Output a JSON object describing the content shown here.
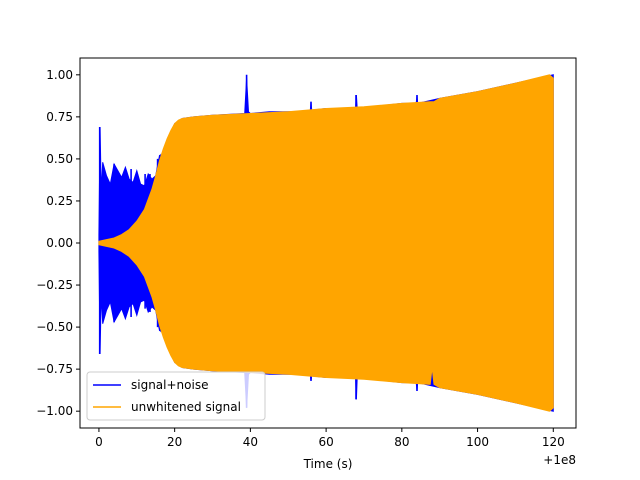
{
  "chart_data": {
    "type": "line",
    "title": "",
    "xlabel": "Time (s)",
    "ylabel": "",
    "x_offset_label": "+1e8",
    "xlim": [
      -5,
      126
    ],
    "ylim": [
      -1.1,
      1.1
    ],
    "xticks": [
      0,
      20,
      40,
      60,
      80,
      100,
      120
    ],
    "xtick_labels": [
      "0",
      "20",
      "40",
      "60",
      "80",
      "100",
      "120"
    ],
    "yticks": [
      -1.0,
      -0.75,
      -0.5,
      -0.25,
      0.0,
      0.25,
      0.5,
      0.75,
      1.0
    ],
    "ytick_labels": [
      "−1.00",
      "−0.75",
      "−0.50",
      "−0.25",
      "0.00",
      "0.25",
      "0.50",
      "0.75",
      "1.00"
    ],
    "grid": false,
    "legend_position": "lower-left",
    "series": [
      {
        "name": "signal+noise",
        "color": "#0000ff",
        "envelope_x": [
          0,
          0.3,
          0.6,
          1,
          2,
          3,
          4,
          5,
          6,
          7,
          8,
          9,
          10,
          11,
          12,
          13,
          14,
          15,
          16,
          17,
          18,
          19,
          20,
          22,
          25,
          30,
          38.5,
          39,
          39.5,
          40,
          45,
          55.8,
          56,
          56.2,
          60,
          67.8,
          68,
          68.2,
          72,
          80,
          83.8,
          84,
          84.2,
          90,
          100,
          110,
          120
        ],
        "envelope_upper": [
          0.05,
          0.69,
          0.3,
          0.48,
          0.4,
          0.35,
          0.47,
          0.43,
          0.39,
          0.45,
          0.38,
          0.36,
          0.43,
          0.35,
          0.34,
          0.41,
          0.38,
          0.4,
          0.52,
          0.53,
          0.59,
          0.66,
          0.71,
          0.74,
          0.75,
          0.76,
          0.77,
          0.98,
          0.78,
          0.77,
          0.78,
          0.78,
          0.84,
          0.79,
          0.8,
          0.8,
          0.88,
          0.8,
          0.81,
          0.83,
          0.83,
          0.88,
          0.83,
          0.86,
          0.9,
          0.95,
          1.0
        ],
        "envelope_lower": [
          -0.05,
          -0.66,
          -0.3,
          -0.48,
          -0.4,
          -0.35,
          -0.47,
          -0.43,
          -0.39,
          -0.45,
          -0.38,
          -0.36,
          -0.43,
          -0.35,
          -0.34,
          -0.41,
          -0.38,
          -0.4,
          -0.52,
          -0.53,
          -0.59,
          -0.66,
          -0.71,
          -0.74,
          -0.75,
          -0.76,
          -0.77,
          -0.98,
          -0.78,
          -0.77,
          -0.78,
          -0.78,
          -0.82,
          -0.79,
          -0.8,
          -0.8,
          -0.93,
          -0.8,
          -0.81,
          -0.83,
          -0.83,
          -0.88,
          -0.83,
          -0.86,
          -0.9,
          -0.95,
          -1.0
        ],
        "spikes": [
          {
            "x": 0.2,
            "upper": 0.69,
            "lower": -0.66
          },
          {
            "x": 4.0,
            "upper": 0.47,
            "lower": -0.47
          },
          {
            "x": 8.5,
            "upper": 0.44,
            "lower": -0.44
          },
          {
            "x": 12.2,
            "upper": 0.41,
            "lower": -0.39
          },
          {
            "x": 13.5,
            "upper": 0.41,
            "lower": -0.41
          },
          {
            "x": 15.5,
            "upper": 0.5,
            "lower": -0.5
          },
          {
            "x": 16.5,
            "upper": 0.53,
            "lower": -0.53
          },
          {
            "x": 39.0,
            "upper": 1.0,
            "lower": -0.98
          },
          {
            "x": 56.0,
            "upper": 0.84,
            "lower": -0.82
          },
          {
            "x": 67.9,
            "upper": 0.88,
            "lower": -0.93
          },
          {
            "x": 84.0,
            "upper": 0.88,
            "lower": -0.88
          }
        ]
      },
      {
        "name": "unwhitened signal",
        "color": "#ffa500",
        "envelope_x": [
          0,
          2,
          4,
          6,
          8,
          10,
          12,
          14,
          15,
          16,
          17,
          18,
          19,
          20,
          21,
          22,
          25,
          30,
          40,
          50,
          60,
          70,
          80,
          87.5,
          88,
          88.5,
          90,
          100,
          110,
          119,
          120
        ],
        "envelope_upper": [
          0.01,
          0.02,
          0.03,
          0.05,
          0.08,
          0.13,
          0.2,
          0.32,
          0.4,
          0.49,
          0.56,
          0.62,
          0.67,
          0.71,
          0.73,
          0.74,
          0.75,
          0.76,
          0.77,
          0.78,
          0.8,
          0.81,
          0.83,
          0.84,
          0.84,
          0.84,
          0.86,
          0.9,
          0.95,
          1.0,
          0.98
        ],
        "envelope_lower": [
          -0.01,
          -0.02,
          -0.03,
          -0.05,
          -0.08,
          -0.13,
          -0.2,
          -0.32,
          -0.4,
          -0.49,
          -0.56,
          -0.62,
          -0.67,
          -0.71,
          -0.73,
          -0.74,
          -0.75,
          -0.76,
          -0.77,
          -0.78,
          -0.8,
          -0.81,
          -0.83,
          -0.84,
          -0.74,
          -0.84,
          -0.86,
          -0.9,
          -0.95,
          -1.0,
          -0.98
        ]
      }
    ]
  }
}
